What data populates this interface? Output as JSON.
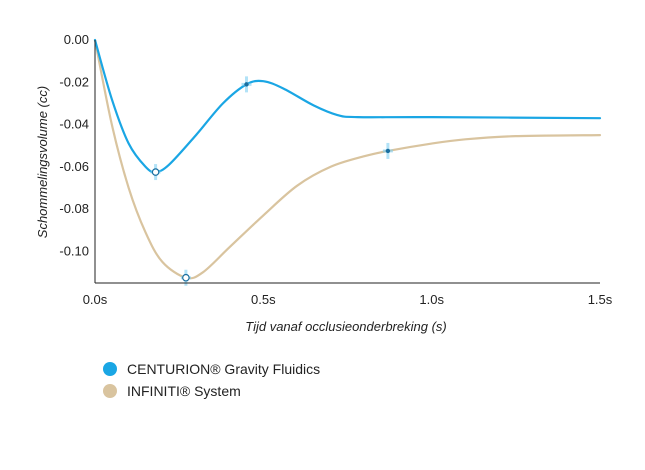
{
  "chart_data": {
    "type": "line",
    "title": "",
    "xlabel": "Tijd vanaf occlusieonderbreking (s)",
    "ylabel": "Schommelingsvolume (cc)",
    "xlim": [
      0,
      1.5
    ],
    "ylim": [
      -0.115,
      0.0
    ],
    "x_ticks": [
      0,
      0.5,
      1.0,
      1.5
    ],
    "x_tick_labels": [
      "0.0s",
      "0.5s",
      "1.0s",
      "1.5s"
    ],
    "y_ticks": [
      0.0,
      -0.02,
      -0.04,
      -0.06,
      -0.08,
      -0.1
    ],
    "y_tick_labels": [
      "0.00",
      "-0.02",
      "-0.04",
      "-0.06",
      "-0.08",
      "-0.10"
    ],
    "grid": false,
    "legend_position": "bottom-left",
    "series": [
      {
        "name": "CENTURION® Gravity Fluidics",
        "color": "#1aa6e4",
        "points": [
          [
            0,
            0
          ],
          [
            0.05,
            -0.028
          ],
          [
            0.1,
            -0.049
          ],
          [
            0.15,
            -0.06
          ],
          [
            0.18,
            -0.0625
          ],
          [
            0.22,
            -0.059
          ],
          [
            0.3,
            -0.045
          ],
          [
            0.38,
            -0.03
          ],
          [
            0.45,
            -0.021
          ],
          [
            0.5,
            -0.0195
          ],
          [
            0.56,
            -0.023
          ],
          [
            0.65,
            -0.031
          ],
          [
            0.72,
            -0.0355
          ],
          [
            0.78,
            -0.0365
          ],
          [
            1.0,
            -0.0365
          ],
          [
            1.5,
            -0.037
          ]
        ],
        "markers": [
          [
            0.18,
            -0.0625
          ],
          [
            0.45,
            -0.021
          ]
        ]
      },
      {
        "name": "INFINITI® System",
        "color": "#d9c49f",
        "points": [
          [
            0,
            0
          ],
          [
            0.05,
            -0.04
          ],
          [
            0.1,
            -0.07
          ],
          [
            0.15,
            -0.091
          ],
          [
            0.2,
            -0.105
          ],
          [
            0.27,
            -0.1125
          ],
          [
            0.32,
            -0.11
          ],
          [
            0.4,
            -0.098
          ],
          [
            0.5,
            -0.083
          ],
          [
            0.6,
            -0.069
          ],
          [
            0.7,
            -0.06
          ],
          [
            0.8,
            -0.055
          ],
          [
            0.87,
            -0.0525
          ],
          [
            1.0,
            -0.049
          ],
          [
            1.1,
            -0.047
          ],
          [
            1.25,
            -0.0455
          ],
          [
            1.5,
            -0.045
          ]
        ],
        "markers": [
          [
            0.27,
            -0.1125
          ],
          [
            0.87,
            -0.0525
          ]
        ]
      }
    ]
  }
}
